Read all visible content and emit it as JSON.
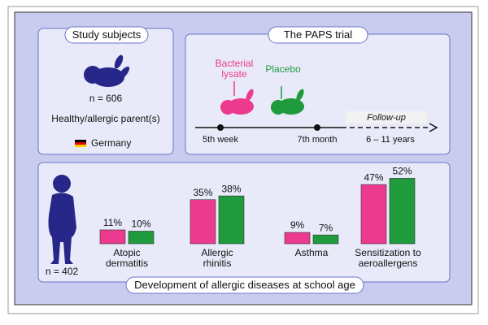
{
  "panels": {
    "subjects": {
      "title": "Study subjects",
      "n": "n = 606",
      "description": "Healthy/allergic parent(s)",
      "country": "Germany"
    },
    "trial": {
      "title": "The PAPS trial",
      "start": "5th week",
      "end": "7th month",
      "followup": "Follow-up",
      "followup_range": "6 – 11 years"
    },
    "outcome": {
      "title": "Development of allergic diseases at school age",
      "n": "n = 402"
    }
  },
  "chart_data": {
    "type": "bar",
    "categories": [
      "Atopic dermatitis",
      "Allergic rhinitis",
      "Asthma",
      "Sensitization to aeroallergens"
    ],
    "series": [
      {
        "name": "Bacterial lysate",
        "color": "#ec3b8f",
        "values": [
          11,
          35,
          9,
          47
        ],
        "value_labels": [
          "11%",
          "35%",
          "9%",
          "47%"
        ]
      },
      {
        "name": "Placebo",
        "color": "#1f9a3c",
        "values": [
          10,
          38,
          7,
          52
        ],
        "value_labels": [
          "10%",
          "38%",
          "7%",
          "52%"
        ]
      }
    ]
  }
}
